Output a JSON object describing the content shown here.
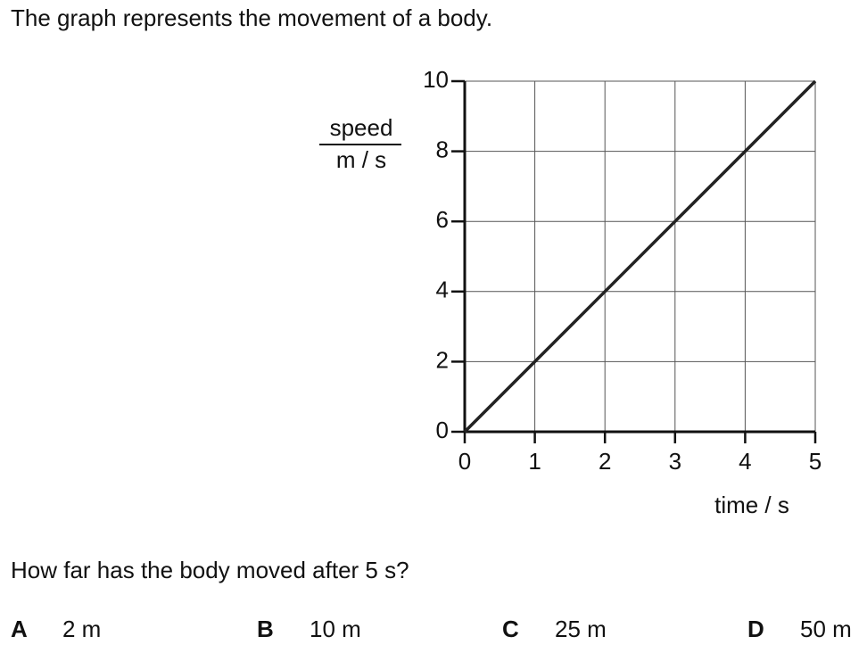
{
  "intro": "The graph represents the movement of a body.",
  "chart_data": {
    "type": "line",
    "y_label": {
      "quantity": "speed",
      "unit": "m / s"
    },
    "x_label": "time / s",
    "x": [
      0,
      1,
      2,
      3,
      4,
      5
    ],
    "values": [
      0,
      2,
      4,
      6,
      8,
      10
    ],
    "color": "#222222",
    "xlim": [
      0,
      5
    ],
    "ylim": [
      0,
      10
    ],
    "xticks": [
      0,
      1,
      2,
      3,
      4,
      5
    ],
    "yticks": [
      0,
      2,
      4,
      6,
      8,
      10
    ],
    "grid": true
  },
  "question": "How far has the body moved after 5 s?",
  "options": [
    {
      "letter": "A",
      "text": "2 m"
    },
    {
      "letter": "B",
      "text": "10 m"
    },
    {
      "letter": "C",
      "text": "25 m"
    },
    {
      "letter": "D",
      "text": "50 m"
    }
  ]
}
